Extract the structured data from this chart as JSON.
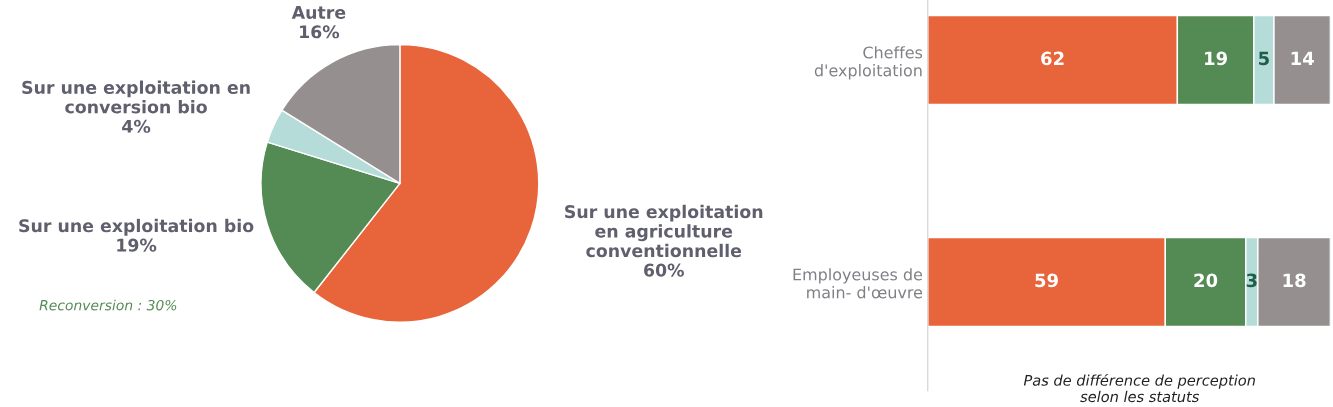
{
  "chart_data": [
    {
      "type": "pie",
      "categories": [
        "Sur une exploitation\nen agriculture\nconventionnelle",
        "Sur une exploitation bio",
        "Sur une exploitation en\nconversion bio",
        "Autre"
      ],
      "values": [
        60,
        19,
        4,
        16
      ],
      "value_labels": [
        "60%",
        "19%",
        "4%",
        "16%"
      ],
      "colors": [
        "#e8643a",
        "#548b54",
        "#b5dcd9",
        "#958f8f"
      ],
      "annotations": [
        "Reconversion : 30%"
      ]
    },
    {
      "type": "bar",
      "orientation": "horizontal",
      "stacked": true,
      "categories": [
        "Cheffes\nd'exploitation",
        "Employeuses de\nmain- d'œuvre"
      ],
      "series": [
        {
          "color": "#e8643a",
          "values": [
            62,
            59
          ]
        },
        {
          "color": "#548b54",
          "values": [
            19,
            20
          ]
        },
        {
          "color": "#b5dcd9",
          "values": [
            5,
            3
          ]
        },
        {
          "color": "#958f8f",
          "values": [
            14,
            18
          ]
        }
      ],
      "data_labels": true,
      "tick_labels": "y",
      "annotations": [
        "Pas de différence de perception\nselon les statuts"
      ]
    }
  ]
}
